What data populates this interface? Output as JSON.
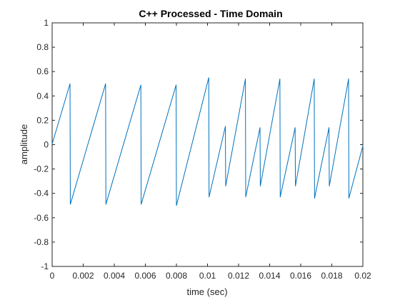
{
  "chart_data": {
    "type": "line",
    "title": "C++ Processed - Time Domain",
    "xlabel": "time (sec)",
    "ylabel": "amplitude",
    "xlim": [
      0,
      0.02
    ],
    "ylim": [
      -1,
      1
    ],
    "grid": false,
    "legend": "none",
    "x_ticks": [
      0,
      0.002,
      0.004,
      0.006,
      0.008,
      0.01,
      0.012,
      0.014,
      0.016,
      0.018,
      0.02
    ],
    "x_tick_labels": [
      "0",
      "0.002",
      "0.004",
      "0.006",
      "0.008",
      "0.01",
      "0.012",
      "0.014",
      "0.016",
      "0.018",
      "0.02"
    ],
    "y_ticks": [
      -1,
      -0.8,
      -0.6,
      -0.4,
      -0.2,
      0,
      0.2,
      0.4,
      0.6,
      0.8,
      1
    ],
    "y_tick_labels": [
      "-1",
      "-0.8",
      "-0.6",
      "-0.4",
      "-0.2",
      "0",
      "0.2",
      "0.4",
      "0.6",
      "0.8",
      "1"
    ],
    "series": [
      {
        "color": "#0072bd",
        "x": [
          0,
          0.00115,
          0.00117,
          0.00344,
          0.00346,
          0.00571,
          0.00573,
          0.00798,
          0.008,
          0.01008,
          0.0101,
          0.01115,
          0.01117,
          0.01244,
          0.01246,
          0.01338,
          0.0134,
          0.01466,
          0.01468,
          0.01564,
          0.01566,
          0.01687,
          0.01689,
          0.01782,
          0.01784,
          0.01908,
          0.0191,
          0.02
        ],
        "y": [
          0.005,
          0.5,
          -0.49,
          0.5,
          -0.49,
          0.49,
          -0.49,
          0.49,
          -0.5,
          0.55,
          -0.43,
          0.15,
          -0.34,
          0.54,
          -0.43,
          0.14,
          -0.34,
          0.54,
          -0.43,
          0.14,
          -0.34,
          0.54,
          -0.44,
          0.14,
          -0.34,
          0.54,
          -0.44,
          -0.01
        ]
      }
    ]
  }
}
